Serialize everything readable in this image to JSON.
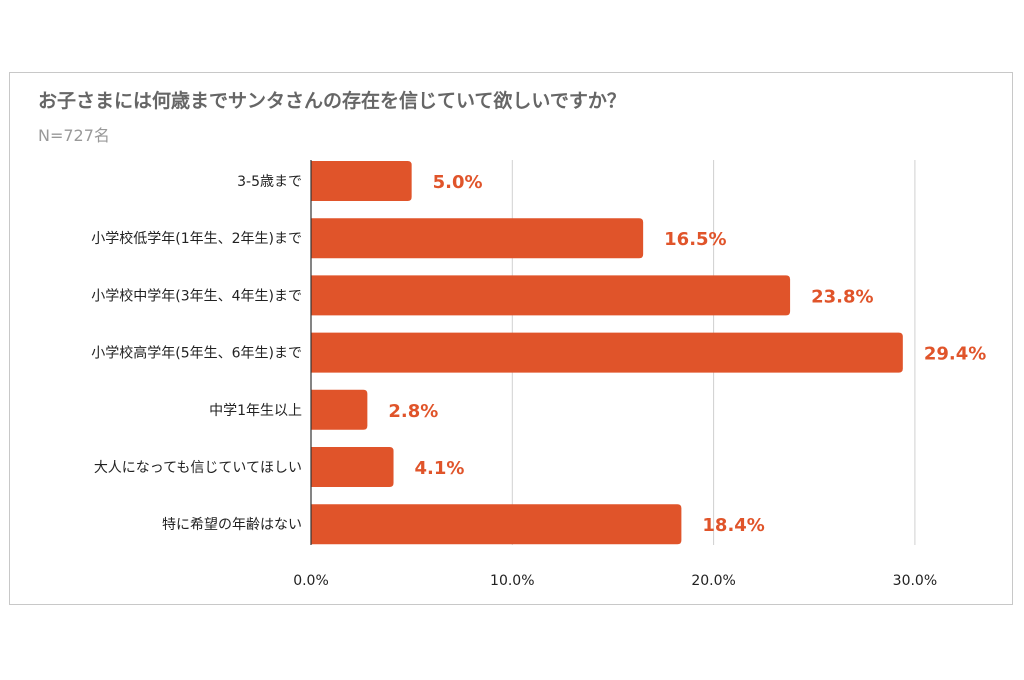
{
  "chart_data": {
    "type": "bar",
    "orientation": "horizontal",
    "title": "お子さまには何歳までサンタさんの存在を信じていて欲しいですか？",
    "subtitle": "N=727名",
    "categories": [
      "3-5歳まで",
      "小学校低学年(1年生、2年生)まで",
      "小学校中学年(3年生、4年生)まで",
      "小学校高学年(5年生、6年生)まで",
      "中学1年生以上",
      "大人になっても信じていてほしい",
      "特に希望の年齢はない"
    ],
    "values": [
      5.0,
      16.5,
      23.8,
      29.4,
      2.8,
      4.1,
      18.4
    ],
    "data_labels": [
      "5.0%",
      "16.5%",
      "23.8%",
      "29.4%",
      "2.8%",
      "4.1%",
      "18.4%"
    ],
    "xlim": [
      0,
      30
    ],
    "x_ticks": [
      "0.0%",
      "10.0%",
      "20.0%",
      "30.0%"
    ],
    "grid": true,
    "bar_color": "#e0542a",
    "label_color": "#e0542a"
  }
}
